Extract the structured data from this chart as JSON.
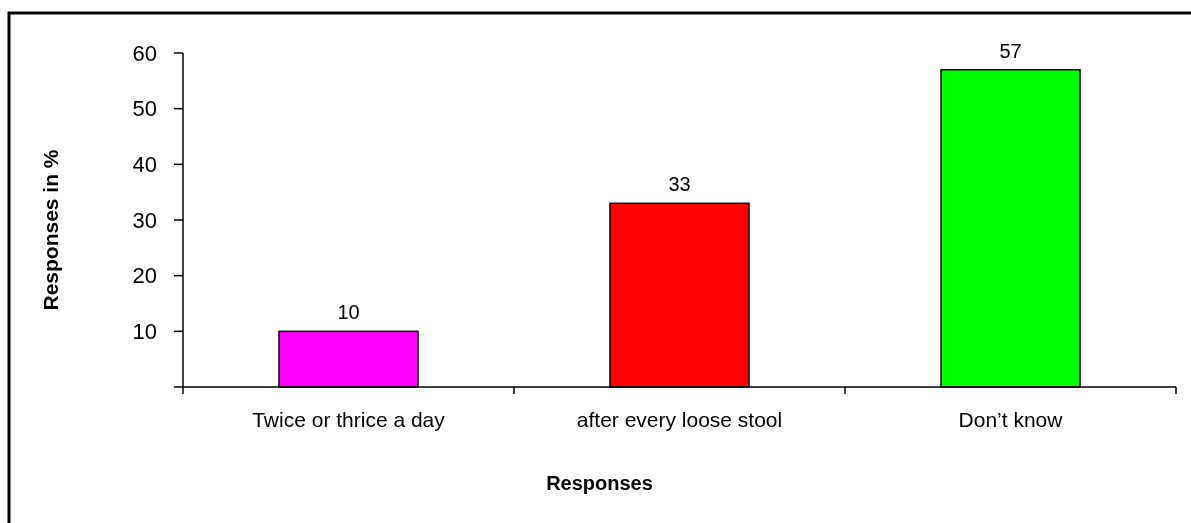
{
  "chart_data": {
    "type": "bar",
    "xlabel": "Responses",
    "ylabel": "Responses in %",
    "categories": [
      "Twice or thrice a day",
      "after every loose stool",
      "Don’t know"
    ],
    "values": [
      10,
      33,
      57
    ],
    "colors": [
      "#ff00ff",
      "#ff0000",
      "#00ff00"
    ],
    "ylim": [
      0,
      60
    ],
    "yticks": [
      {
        "value": 0,
        "label": null
      },
      10,
      20,
      30,
      40,
      50,
      60
    ],
    "data_labels": true
  }
}
